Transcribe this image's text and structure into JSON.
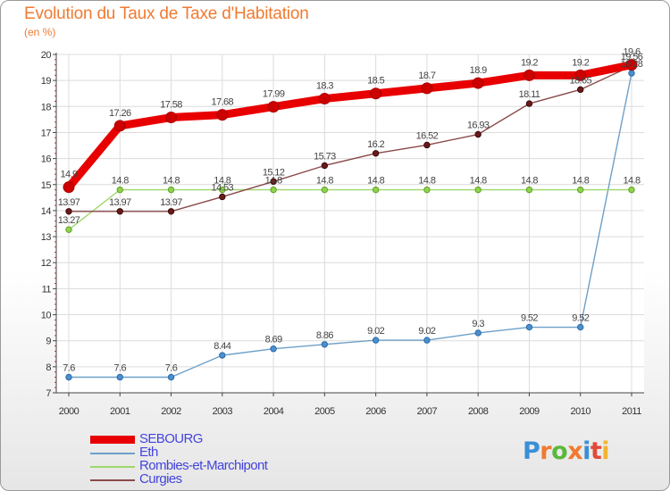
{
  "header": {
    "title": "Evolution du Taux de Taxe d'Habitation",
    "unit": "(en %)"
  },
  "logo": {
    "text": "Proxiti",
    "letters": [
      "P",
      "r",
      "o",
      "x",
      "i",
      "t",
      "i"
    ],
    "colors": [
      "#3a8fd6",
      "#f07a30",
      "#5bb83a",
      "#f07a30",
      "#3a8fd6",
      "#e04a3a",
      "#f2b430"
    ]
  },
  "chart_data": {
    "type": "line",
    "title": "Evolution du Taux de Taxe d'Habitation",
    "ylabel": "(en %)",
    "xlabel": "",
    "x": [
      "2000",
      "2001",
      "2002",
      "2003",
      "2004",
      "2005",
      "2006",
      "2007",
      "2008",
      "2009",
      "2010",
      "2011"
    ],
    "ylim": [
      7,
      20
    ],
    "yticks": [
      "7",
      "8",
      "9",
      "10",
      "11",
      "12",
      "13",
      "14",
      "15",
      "16",
      "17",
      "18",
      "19",
      "20"
    ],
    "grid": true,
    "legend_position": "bottom-left",
    "series": [
      {
        "name": "SEBOURG",
        "color": "#e80000",
        "values": [
          14.9,
          17.26,
          17.58,
          17.68,
          17.99,
          18.3,
          18.5,
          18.7,
          18.9,
          19.2,
          19.2,
          19.6
        ],
        "labels": [
          "14.9",
          "17.26",
          "17.58",
          "17.68",
          "17.99",
          "18.3",
          "18.5",
          "18.7",
          "18.9",
          "19.2",
          "19.2",
          "19.6"
        ]
      },
      {
        "name": "Eth",
        "color": "#6ea0c8",
        "values": [
          7.6,
          7.6,
          7.6,
          8.44,
          8.69,
          8.86,
          9.02,
          9.02,
          9.3,
          9.52,
          9.52,
          19.28
        ],
        "labels": [
          "7.6",
          "7.6",
          "7.6",
          "8.44",
          "8.69",
          "8.86",
          "9.02",
          "9.02",
          "9.3",
          "9.52",
          "9.52",
          "19.28"
        ]
      },
      {
        "name": "Rombies-et-Marchipont",
        "color": "#9ed86a",
        "values": [
          13.27,
          14.8,
          14.8,
          14.8,
          14.8,
          14.8,
          14.8,
          14.8,
          14.8,
          14.8,
          14.8,
          14.8
        ],
        "labels": [
          "13.27",
          "14.8",
          "14.8",
          "14.8",
          "14.8",
          "14.8",
          "14.8",
          "14.8",
          "14.8",
          "14.8",
          "14.8",
          "14.8"
        ]
      },
      {
        "name": "Curgies",
        "color": "#8b4a4a",
        "values": [
          13.97,
          13.97,
          13.97,
          14.53,
          15.12,
          15.73,
          16.2,
          16.52,
          16.93,
          18.11,
          18.65,
          19.56
        ],
        "labels": [
          "13.97",
          "13.97",
          "13.97",
          "14.53",
          "15.12",
          "15.73",
          "16.2",
          "16.52",
          "16.93",
          "18.11",
          "18.65",
          "19.56"
        ]
      }
    ]
  }
}
